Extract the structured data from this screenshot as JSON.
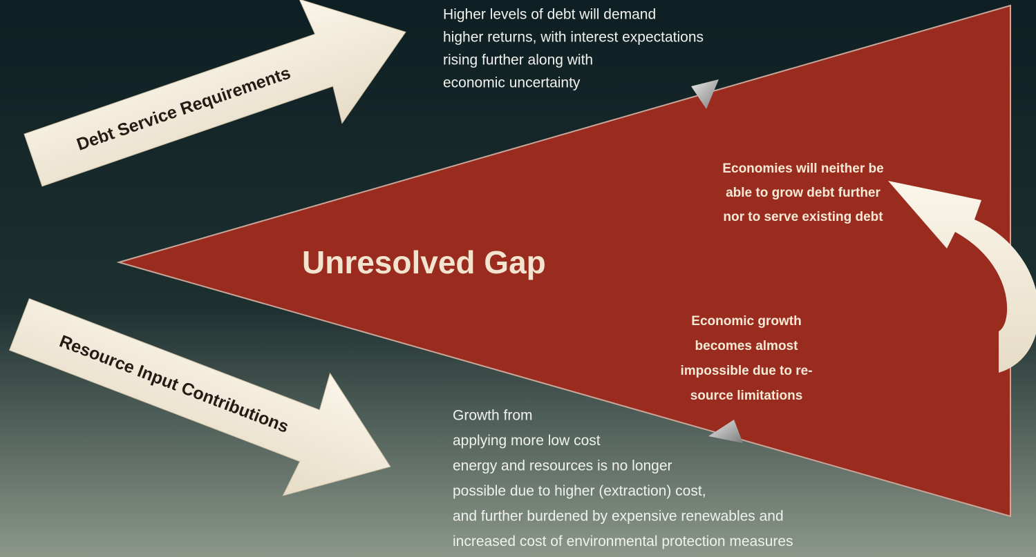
{
  "arrows": [
    {
      "label": "Debt Service Requirements"
    },
    {
      "label": "Resource Input Contributions"
    }
  ],
  "center": {
    "label": "Unresolved Gap"
  },
  "top_note": {
    "lines": [
      "Higher levels of debt will demand",
      "higher returns, with interest expectations",
      "rising further along with",
      "economic uncertainty"
    ]
  },
  "upper_inner_note": {
    "lines": [
      "Economies will neither be",
      "able to grow debt further",
      "nor to serve existing debt"
    ]
  },
  "lower_inner_note": {
    "lines": [
      "Economic growth",
      "becomes almost",
      "impossible due to re-",
      "source limitations"
    ]
  },
  "bottom_note": {
    "lines": [
      "Growth from",
      "applying more low cost",
      "energy and resources is no longer",
      "possible due to higher (extraction) cost,",
      "and further burdened by expensive renewables and",
      "increased cost of environmental protection measures"
    ]
  }
}
